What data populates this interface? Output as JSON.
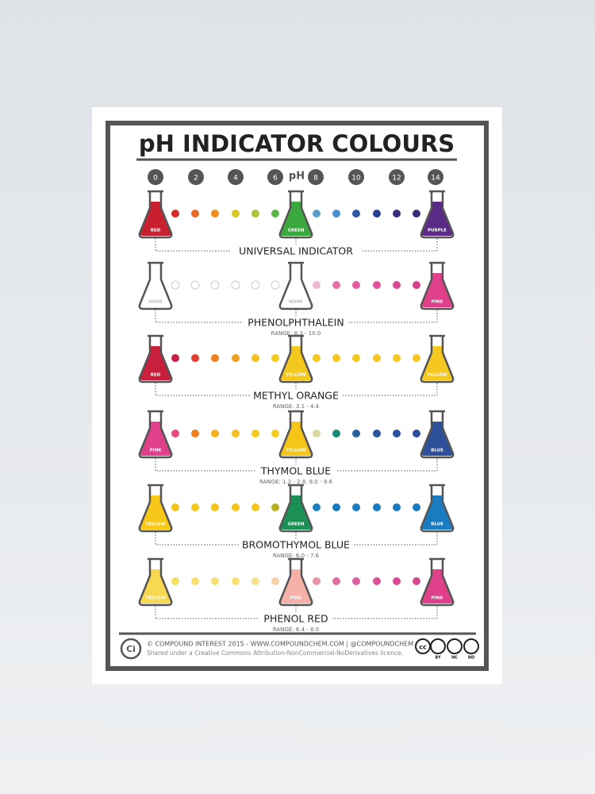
{
  "header": {
    "title": "pH INDICATOR COLOURS",
    "ph_label": "pH",
    "ph_ticks": [
      0,
      2,
      4,
      6,
      8,
      10,
      12,
      14
    ]
  },
  "indicators": [
    {
      "name": "UNIVERSAL INDICATOR",
      "flasks": [
        {
          "label": "RED",
          "color": "#c8202f"
        },
        {
          "label": "GREEN",
          "color": "#3aa83c"
        },
        {
          "label": "PURPLE",
          "color": "#5b2a86"
        }
      ],
      "dots": [
        "#d42a2a",
        "#e8692a",
        "#f08c1f",
        "#d6c820",
        "#a7c63a",
        "#5cb846",
        "#5a9ec8",
        "#4a8fd0",
        "#3158a8",
        "#2a3e96",
        "#3a2d80",
        "#3e2a7a"
      ]
    },
    {
      "name": "PHENOLPHTHALEIN",
      "range": "RANGE: 8.3 - 10.0",
      "flasks": [
        {
          "label": "NONE",
          "color": "#ffffff"
        },
        {
          "label": "NONE",
          "color": "#ffffff"
        },
        {
          "label": "PINK",
          "color": "#e0408a"
        }
      ],
      "dots": [
        "#ffffff",
        "#ffffff",
        "#ffffff",
        "#ffffff",
        "#ffffff",
        "#ffffff",
        "#f0b8d0",
        "#e870a8",
        "#e45ca0",
        "#e0509a",
        "#dd4895",
        "#d84090"
      ]
    },
    {
      "name": "METHYL ORANGE",
      "range": "RANGE: 3.1 - 4.4",
      "flasks": [
        {
          "label": "RED",
          "color": "#c8203c"
        },
        {
          "label": "YELLOW",
          "color": "#f5c820"
        },
        {
          "label": "YELLOW",
          "color": "#f5c820"
        }
      ],
      "dots": [
        "#c81e48",
        "#e04030",
        "#f08020",
        "#f0a020",
        "#f5c020",
        "#f5c820",
        "#f5c820",
        "#f5c820",
        "#f5c820",
        "#f5c820",
        "#f5c820",
        "#f5c820"
      ]
    },
    {
      "name": "THYMOL BLUE",
      "range": "RANGE: 1.2 - 2.8, 8.0 - 9.6",
      "flasks": [
        {
          "label": "PINK",
          "color": "#e0408a"
        },
        {
          "label": "YELLOW",
          "color": "#f5c518"
        },
        {
          "label": "BLUE",
          "color": "#2e4f9a"
        }
      ],
      "dots": [
        "#e84a80",
        "#f08020",
        "#f5b020",
        "#f5c020",
        "#f5c820",
        "#f5cc20",
        "#d8d8a0",
        "#1a8a7a",
        "#2a5fa0",
        "#2b55a0",
        "#2c50a0",
        "#2d4c9c"
      ]
    },
    {
      "name": "BROMOTHYMOL BLUE",
      "range": "RANGE: 6.0 - 7.6",
      "flasks": [
        {
          "label": "YELLOW",
          "color": "#f8c818"
        },
        {
          "label": "GREEN",
          "color": "#1a9055"
        },
        {
          "label": "BLUE",
          "color": "#1a7cc0"
        }
      ],
      "dots": [
        "#f5c518",
        "#f5c518",
        "#f5c518",
        "#f5c518",
        "#f5c518",
        "#b8b020",
        "#1a80c0",
        "#1a7cc0",
        "#1a7cc0",
        "#1a7cc0",
        "#1a7cc0",
        "#1a7cc0"
      ]
    },
    {
      "name": "PHENOL RED",
      "range": "RANGE: 6.4 - 8.0",
      "flasks": [
        {
          "label": "YELLOW",
          "color": "#f8d850"
        },
        {
          "label": "PINK",
          "color": "#f5b0a8"
        },
        {
          "label": "PINK",
          "color": "#e0408a"
        }
      ],
      "dots": [
        "#f5e060",
        "#f5e070",
        "#f5e075",
        "#f5e070",
        "#f8e090",
        "#f8d0a8",
        "#e890a8",
        "#e070a0",
        "#dd60a0",
        "#dd5098",
        "#dc4a95",
        "#d84890"
      ]
    }
  ],
  "footer": {
    "logo": "Ci",
    "line1": "© COMPOUND INTEREST 2015 - WWW.COMPOUNDCHEM.COM | @COMPOUNDCHEM",
    "line2": "Shared under a Creative Commons Attribution-NonCommercial-NoDerivatives licence.",
    "cc": "cc",
    "badges": [
      "BY",
      "NC",
      "ND"
    ]
  }
}
